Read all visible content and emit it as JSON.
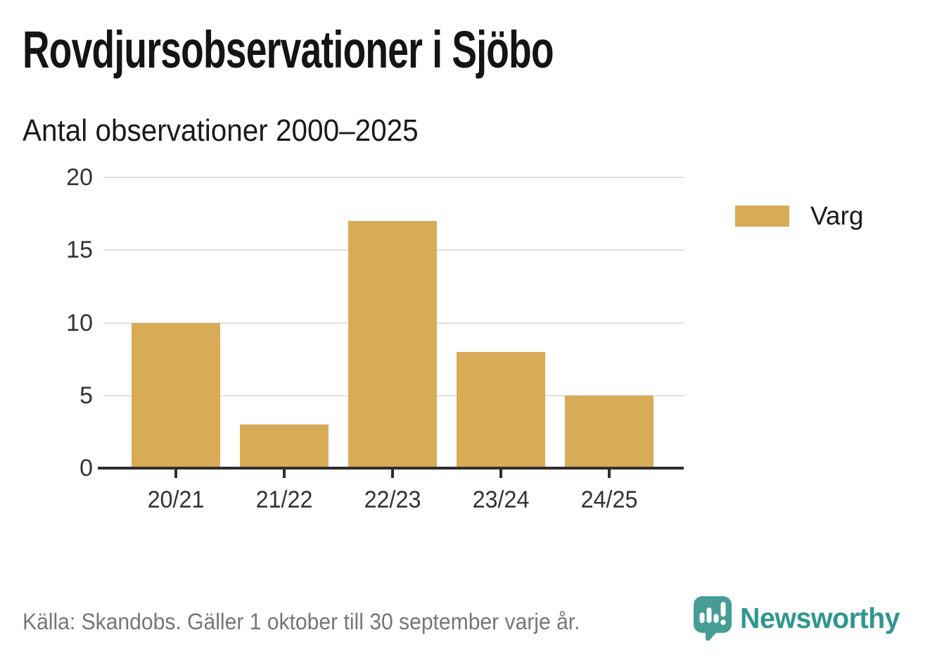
{
  "header": {
    "title": "Rovdjursobservationer i Sjöbo",
    "subtitle": "Antal observationer 2000–2025"
  },
  "chart_data": {
    "type": "bar",
    "categories": [
      "20/21",
      "21/22",
      "22/23",
      "23/24",
      "24/25"
    ],
    "series": [
      {
        "name": "Varg",
        "values": [
          10,
          3,
          17,
          8,
          5
        ]
      }
    ],
    "title": "Rovdjursobservationer i Sjöbo",
    "subtitle": "Antal observationer 2000–2025",
    "xlabel": "",
    "ylabel": "",
    "ylim": [
      0,
      20
    ],
    "yticks": [
      0,
      5,
      10,
      15,
      20
    ],
    "grid": true,
    "legend_position": "right",
    "bar_color": "#d8ab57"
  },
  "legend": {
    "items": [
      {
        "label": "Varg",
        "color": "#d8ab57"
      }
    ]
  },
  "footer": {
    "source": "Källa: Skandobs. Gäller 1 oktober till 30 september varje år.",
    "brand": "Newsworthy"
  },
  "colors": {
    "bar": "#d8ab57",
    "gridline": "#e0e0e0",
    "axis": "#2e2e2e",
    "tick_text": "#333333",
    "source_text": "#767676",
    "brand_teal": "#2f968f",
    "logo_teal": "#479c96",
    "logo_teal_dark": "#3d8b85"
  }
}
